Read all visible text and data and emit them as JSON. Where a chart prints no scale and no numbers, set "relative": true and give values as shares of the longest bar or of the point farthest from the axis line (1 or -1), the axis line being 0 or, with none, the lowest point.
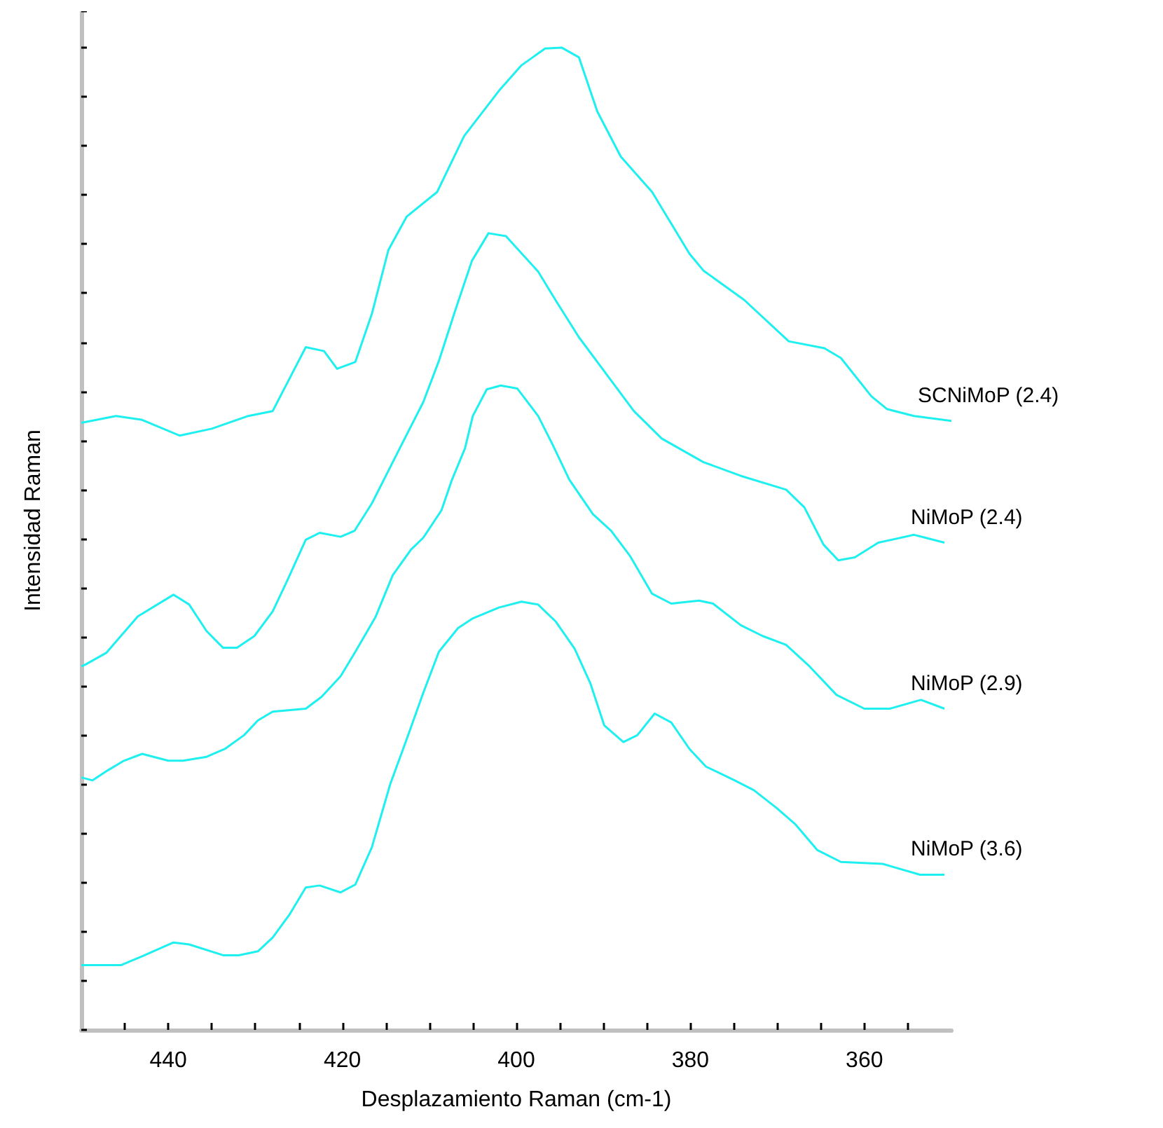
{
  "chart_data": {
    "type": "line",
    "relative": true,
    "xlabel": "Desplazamiento Raman (cm-1)",
    "ylabel": "Intensidad Raman",
    "xlim": [
      450,
      350
    ],
    "xticks": [
      {
        "value": 445,
        "label": null
      },
      440,
      {
        "value": 435,
        "label": null
      },
      {
        "value": 430,
        "label": null
      },
      {
        "value": 425,
        "label": null
      },
      420,
      {
        "value": 415,
        "label": null
      },
      {
        "value": 410,
        "label": null
      },
      {
        "value": 405,
        "label": null
      },
      400,
      {
        "value": 395,
        "label": null
      },
      {
        "value": 390,
        "label": null
      },
      {
        "value": 385,
        "label": null
      },
      380,
      {
        "value": 375,
        "label": null
      },
      {
        "value": 370,
        "label": null
      },
      {
        "value": 365,
        "label": null
      },
      360,
      {
        "value": 355,
        "label": null
      }
    ],
    "legend": false,
    "grid": false,
    "series": [
      {
        "name": "SCNiMoP (2.4)",
        "color": "#1ef0f0",
        "x": [
          450,
          446,
          443,
          438.7,
          435,
          430.8,
          428,
          424.2,
          422.1,
          420.6,
          418.5,
          416.6,
          414.7,
          412.6,
          409.1,
          406,
          402,
          399.4,
          396.7,
          394.8,
          392.8,
          390.7,
          388,
          384.4,
          380.1,
          378.5,
          373.8,
          368.7,
          364.6,
          362.7,
          359.2,
          357.4,
          354.3,
          350
        ],
        "values": [
          0.618,
          0.625,
          0.621,
          0.605,
          0.612,
          0.625,
          0.63,
          0.695,
          0.691,
          0.673,
          0.68,
          0.729,
          0.794,
          0.828,
          0.853,
          0.91,
          0.956,
          0.982,
          0.999,
          1.0,
          0.99,
          0.935,
          0.889,
          0.853,
          0.79,
          0.773,
          0.743,
          0.701,
          0.694,
          0.684,
          0.645,
          0.632,
          0.625,
          0.62
        ]
      },
      {
        "name": "NiMoP (2.4)",
        "color": "#1ef0f0",
        "x": [
          450,
          449.5,
          447.1,
          443.5,
          439.4,
          437.6,
          435.6,
          433.7,
          432.1,
          430.1,
          428,
          426.4,
          424.2,
          422.6,
          420.2,
          418.6,
          416.6,
          413.4,
          410.7,
          408.9,
          407,
          405.1,
          403.2,
          401.2,
          397.5,
          395.5,
          392.8,
          389.6,
          386.5,
          383.3,
          378.5,
          374.2,
          369,
          366.9,
          364.7,
          363,
          361.1,
          358.4,
          354.3,
          350.8
        ],
        "values": [
          0.37,
          0.372,
          0.384,
          0.421,
          0.443,
          0.433,
          0.406,
          0.389,
          0.389,
          0.401,
          0.426,
          0.456,
          0.499,
          0.506,
          0.502,
          0.508,
          0.536,
          0.592,
          0.639,
          0.681,
          0.733,
          0.783,
          0.811,
          0.808,
          0.772,
          0.743,
          0.705,
          0.667,
          0.63,
          0.602,
          0.578,
          0.564,
          0.55,
          0.532,
          0.494,
          0.478,
          0.481,
          0.496,
          0.504,
          0.496
        ]
      },
      {
        "name": "NiMoP (2.9)",
        "color": "#1ef0f0",
        "x": [
          450,
          448.7,
          447,
          445.1,
          443,
          440,
          438.3,
          435.6,
          433.5,
          431.3,
          429.7,
          428,
          424.2,
          422.4,
          420.2,
          418.5,
          416.2,
          414.2,
          412.1,
          410.7,
          408.6,
          407.4,
          405.9,
          405,
          403.4,
          401.8,
          399.9,
          397.5,
          395.9,
          393.9,
          391.2,
          389.1,
          386.9,
          384.4,
          382.2,
          379,
          377.4,
          374.2,
          371.7,
          369,
          366.3,
          363.2,
          360,
          357.1,
          353.5,
          350.8
        ],
        "values": [
          0.257,
          0.254,
          0.264,
          0.274,
          0.281,
          0.274,
          0.274,
          0.278,
          0.286,
          0.3,
          0.315,
          0.324,
          0.327,
          0.339,
          0.36,
          0.385,
          0.42,
          0.463,
          0.489,
          0.501,
          0.529,
          0.56,
          0.592,
          0.625,
          0.652,
          0.656,
          0.653,
          0.625,
          0.597,
          0.56,
          0.525,
          0.508,
          0.482,
          0.444,
          0.434,
          0.437,
          0.434,
          0.412,
          0.401,
          0.392,
          0.37,
          0.341,
          0.327,
          0.327,
          0.336,
          0.327
        ]
      },
      {
        "name": "NiMoP (3.6)",
        "color": "#1ef0f0",
        "x": [
          450,
          445.4,
          443,
          439.4,
          437.6,
          433.7,
          431.9,
          429.7,
          428,
          426.1,
          424.2,
          422.6,
          420.2,
          418.5,
          416.6,
          414.5,
          412.6,
          410.7,
          408.9,
          406.7,
          405,
          402,
          399.4,
          397.5,
          395.5,
          393.3,
          391.5,
          389.9,
          387.7,
          386.1,
          384.1,
          382.2,
          380.1,
          378.2,
          374.9,
          372.7,
          370.1,
          367.9,
          365.4,
          362.7,
          357.9,
          353.6,
          350.8
        ],
        "values": [
          0.066,
          0.066,
          0.075,
          0.089,
          0.087,
          0.076,
          0.076,
          0.08,
          0.094,
          0.117,
          0.145,
          0.147,
          0.14,
          0.148,
          0.186,
          0.25,
          0.296,
          0.343,
          0.385,
          0.409,
          0.419,
          0.43,
          0.436,
          0.433,
          0.416,
          0.388,
          0.353,
          0.31,
          0.293,
          0.3,
          0.322,
          0.313,
          0.286,
          0.268,
          0.254,
          0.244,
          0.226,
          0.209,
          0.183,
          0.171,
          0.169,
          0.158,
          0.158
        ]
      }
    ]
  }
}
